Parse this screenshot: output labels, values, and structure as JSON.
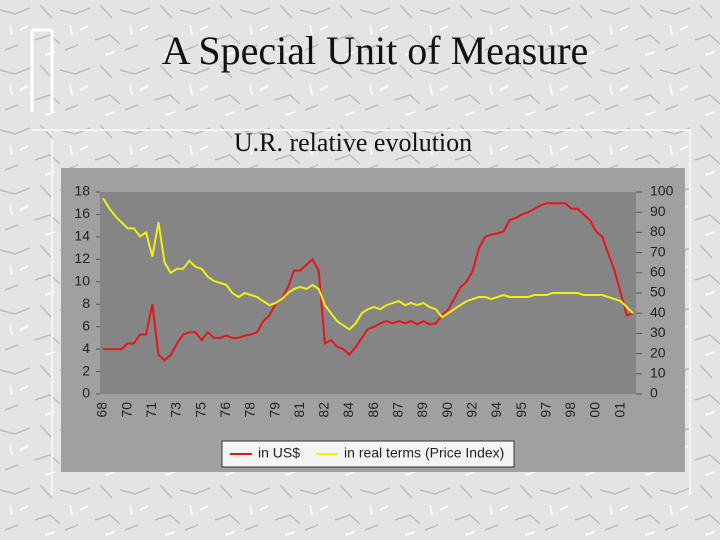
{
  "chart_data": {
    "type": "line",
    "title": "A Special Unit of Measure",
    "subtitle": "U.R. relative evolution",
    "categories": [
      "68",
      null,
      null,
      null,
      "70",
      null,
      null,
      null,
      "71",
      null,
      null,
      null,
      "73",
      null,
      null,
      null,
      "75",
      null,
      null,
      null,
      "76",
      null,
      null,
      null,
      "78",
      null,
      null,
      null,
      "79",
      null,
      null,
      null,
      "81",
      null,
      null,
      null,
      "82",
      null,
      null,
      null,
      "84",
      null,
      null,
      null,
      "86",
      null,
      null,
      null,
      "87",
      null,
      null,
      null,
      "89",
      null,
      null,
      null,
      "90",
      null,
      null,
      null,
      "92",
      null,
      null,
      null,
      "94",
      null,
      null,
      null,
      "95",
      null,
      null,
      null,
      "97",
      null,
      null,
      null,
      "98",
      null,
      null,
      null,
      "00",
      null,
      null,
      null,
      "01",
      null,
      null
    ],
    "series": [
      {
        "name": "in US$",
        "color": "#e8141c",
        "axis": "y",
        "values": [
          4,
          4,
          4,
          4,
          4.5,
          4.5,
          5.3,
          5.3,
          8,
          3.5,
          3,
          3.5,
          4.5,
          5.3,
          5.5,
          5.5,
          4.8,
          5.5,
          5,
          5,
          5.2,
          5,
          5,
          5.2,
          5.3,
          5.5,
          6.5,
          7,
          8,
          8.5,
          9.5,
          11,
          11,
          11.5,
          12,
          11,
          4.5,
          4.8,
          4.2,
          4,
          3.5,
          4.2,
          5,
          5.8,
          6,
          6.3,
          6.5,
          6.3,
          6.5,
          6.3,
          6.5,
          6.2,
          6.5,
          6.2,
          6.3,
          7,
          7.5,
          8.5,
          9.5,
          10,
          11,
          13,
          14,
          14.2,
          14.3,
          14.5,
          15.5,
          15.7,
          16,
          16.2,
          16.5,
          16.8,
          17,
          17,
          17,
          17,
          16.5,
          16.5,
          16,
          15.5,
          14.5,
          14,
          12.5,
          11,
          9,
          7,
          7.2
        ]
      },
      {
        "name": "in real terms (Price Index)",
        "color": "#f0f014",
        "axis": "y2",
        "values": [
          97,
          92,
          88,
          85,
          82,
          82,
          78,
          80,
          68,
          85,
          65,
          60,
          62,
          62,
          66,
          63,
          62,
          58,
          56,
          55,
          54,
          50,
          48,
          50,
          49,
          48,
          46,
          44,
          45,
          47,
          50,
          52,
          53,
          52,
          54,
          52,
          44,
          40,
          36,
          34,
          32,
          35,
          40,
          42,
          43,
          42,
          44,
          45,
          46,
          44,
          45,
          44,
          45,
          43,
          42,
          38,
          40,
          42,
          44,
          46,
          47,
          48,
          48,
          47,
          48,
          49,
          48,
          48,
          48,
          48,
          49,
          49,
          49,
          50,
          50,
          50,
          50,
          50,
          49,
          49,
          49,
          49,
          48,
          47,
          46,
          43,
          40
        ]
      }
    ],
    "ylim": [
      0,
      18
    ],
    "yticks": [
      0,
      2,
      4,
      6,
      8,
      10,
      12,
      14,
      16,
      18
    ],
    "y2lim": [
      0,
      100
    ],
    "y2ticks": [
      0,
      10,
      20,
      30,
      40,
      50,
      60,
      70,
      80,
      90,
      100
    ],
    "legend": "bottom"
  }
}
